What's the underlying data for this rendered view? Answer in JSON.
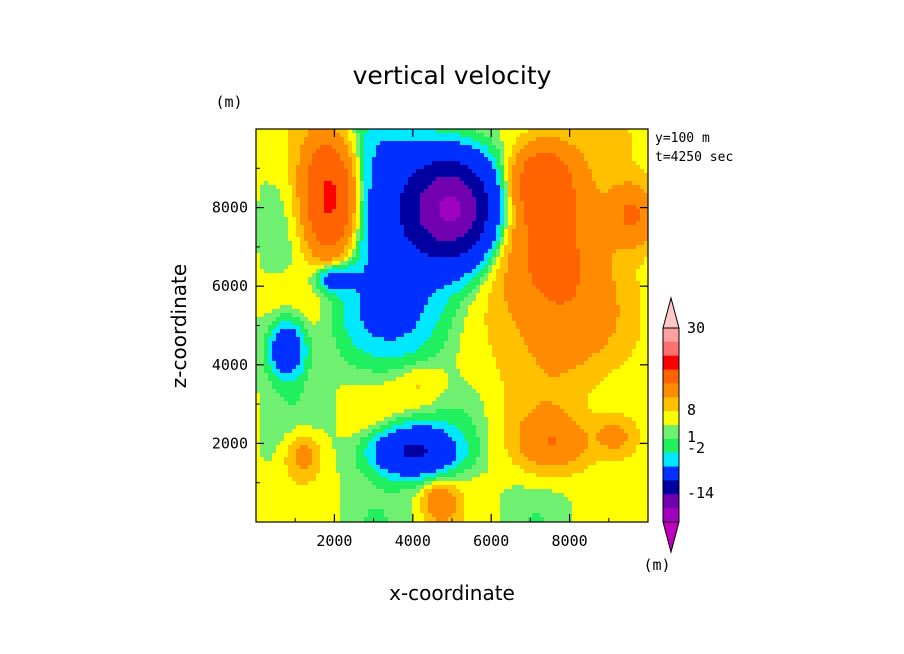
{
  "chart_data": {
    "type": "heatmap",
    "title": "vertical velocity",
    "xlabel": "x-coordinate",
    "ylabel": "z-coordinate",
    "x_unit": "(m)",
    "y_unit": "(m)",
    "xlim": [
      0,
      10000
    ],
    "ylim": [
      0,
      10000
    ],
    "x_ticks": [
      2000,
      4000,
      6000,
      8000
    ],
    "y_ticks": [
      2000,
      4000,
      6000,
      8000
    ],
    "x_tick_labels": [
      "2000",
      "4000",
      "6000",
      "8000"
    ],
    "y_tick_labels": [
      "2000",
      "4000",
      "6000",
      "8000"
    ],
    "annotations": [
      "y=100 m",
      "t=4250 sec"
    ],
    "colorbar": {
      "unit": "(m)",
      "labels": [
        {
          "text": "30",
          "value": 30
        },
        {
          "text": "8",
          "value": 8
        },
        {
          "text": "1",
          "value": 1
        },
        {
          "text": "-2",
          "value": -2
        },
        {
          "text": "-14",
          "value": -14
        }
      ],
      "colors": [
        "#c000c0",
        "#a000c0",
        "#7000b0",
        "#0000a0",
        "#0030ff",
        "#00e8ff",
        "#20f060",
        "#70f070",
        "#ffff00",
        "#ffc000",
        "#ff8c00",
        "#ff6400",
        "#ff0000",
        "#ff7070",
        "#ffa0a0",
        "#ffc8c8"
      ]
    },
    "features": [
      {
        "kind": "max",
        "x": 1900,
        "z": 8200,
        "amp": 10,
        "sx": 700,
        "sz": 1500
      },
      {
        "kind": "min",
        "x": 5000,
        "z": 8000,
        "amp": -14,
        "sx": 1100,
        "sz": 1300
      },
      {
        "kind": "min",
        "x": 3200,
        "z": 7800,
        "amp": -4,
        "sx": 1400,
        "sz": 2000
      },
      {
        "kind": "min",
        "x": 3800,
        "z": 5200,
        "amp": -2,
        "sx": 1600,
        "sz": 1200
      },
      {
        "kind": "min",
        "x": 800,
        "z": 4400,
        "amp": -5,
        "sx": 450,
        "sz": 700
      },
      {
        "kind": "min",
        "x": 2000,
        "z": 6200,
        "amp": -4,
        "sx": 450,
        "sz": 350
      },
      {
        "kind": "min",
        "x": 4000,
        "z": 1800,
        "amp": -7,
        "sx": 1000,
        "sz": 600
      },
      {
        "kind": "max",
        "x": 7600,
        "z": 6500,
        "amp": 4.5,
        "sx": 1500,
        "sz": 2800
      },
      {
        "kind": "max",
        "x": 7300,
        "z": 8700,
        "amp": 5,
        "sx": 700,
        "sz": 900
      },
      {
        "kind": "max",
        "x": 9600,
        "z": 7800,
        "amp": 4,
        "sx": 600,
        "sz": 800
      },
      {
        "kind": "max",
        "x": 7600,
        "z": 2000,
        "amp": 3,
        "sx": 900,
        "sz": 700
      },
      {
        "kind": "max",
        "x": 9200,
        "z": 2200,
        "amp": 2.5,
        "sx": 600,
        "sz": 600
      },
      {
        "kind": "max",
        "x": 4700,
        "z": 500,
        "amp": 3,
        "sx": 400,
        "sz": 500
      },
      {
        "kind": "max",
        "x": 1200,
        "z": 1700,
        "amp": 2.5,
        "sx": 450,
        "sz": 600
      },
      {
        "kind": "max",
        "x": 4200,
        "z": 3500,
        "amp": 1,
        "sx": 600,
        "sz": 500
      }
    ],
    "background_value": 0.3
  }
}
